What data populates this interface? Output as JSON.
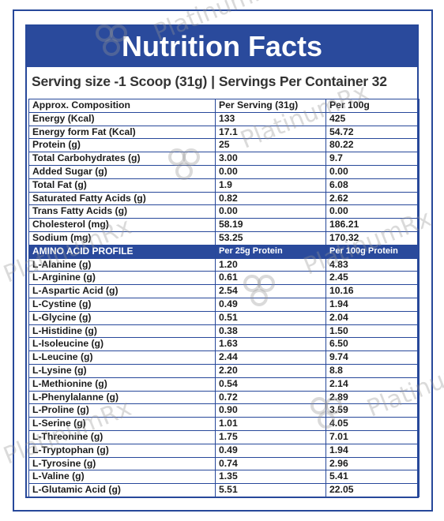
{
  "title": "Nutrition Facts",
  "serving": {
    "size": "Serving size -1 Scoop (31g)",
    "separator": "|",
    "per_container": "Servings Per Container 32"
  },
  "header": {
    "name": "Approx. Composition",
    "per_serving": "Per Serving  (31g)",
    "per_100g": "Per 100g"
  },
  "nutrients": [
    {
      "name": "Energy (Kcal)",
      "per_serving": "133",
      "per_100g": "425"
    },
    {
      "name": "Energy form Fat (Kcal)",
      "per_serving": "17.1",
      "per_100g": "54.72"
    },
    {
      "name": "Protein (g)",
      "per_serving": "25",
      "per_100g": "80.22"
    },
    {
      "name": "Total Carbohydrates (g)",
      "per_serving": "3.00",
      "per_100g": "9.7"
    },
    {
      "name": "Added Sugar (g)",
      "per_serving": "0.00",
      "per_100g": "0.00"
    },
    {
      "name": "Total Fat (g)",
      "per_serving": "1.9",
      "per_100g": "6.08"
    },
    {
      "name": "Saturated Fatty Acids (g)",
      "per_serving": "0.82",
      "per_100g": "2.62"
    },
    {
      "name": "Trans Fatty Acids (g)",
      "per_serving": "0.00",
      "per_100g": "0.00"
    },
    {
      "name": "Cholesterol (mg)",
      "per_serving": "58.19",
      "per_100g": "186.21"
    },
    {
      "name": "Sodium (mg)",
      "per_serving": "53.25",
      "per_100g": "170.32"
    }
  ],
  "amino_header": {
    "name": "AMINO ACID PROFILE",
    "per_25g": "Per 25g Protein",
    "per_100g": "Per 100g Protein"
  },
  "amino_acids": [
    {
      "name": "L-Alanine (g)",
      "per_25g": "1.20",
      "per_100g": "4.83"
    },
    {
      "name": "L-Arginine (g)",
      "per_25g": "0.61",
      "per_100g": "2.45"
    },
    {
      "name": "L-Aspartic Acid (g)",
      "per_25g": "2.54",
      "per_100g": "10.16"
    },
    {
      "name": "L-Cystine (g)",
      "per_25g": "0.49",
      "per_100g": "1.94"
    },
    {
      "name": "L-Glycine (g)",
      "per_25g": "0.51",
      "per_100g": "2.04"
    },
    {
      "name": "L-Histidine (g)",
      "per_25g": "0.38",
      "per_100g": "1.50"
    },
    {
      "name": "L-Isoleucine (g)",
      "per_25g": "1.63",
      "per_100g": "6.50"
    },
    {
      "name": "L-Leucine (g)",
      "per_25g": "2.44",
      "per_100g": "9.74"
    },
    {
      "name": "L-Lysine (g)",
      "per_25g": "2.20",
      "per_100g": "8.8"
    },
    {
      "name": "L-Methionine (g)",
      "per_25g": "0.54",
      "per_100g": "2.14"
    },
    {
      "name": "L-Phenylalanne (g)",
      "per_25g": "0.72",
      "per_100g": "2.89"
    },
    {
      "name": "L-Proline (g)",
      "per_25g": "0.90",
      "per_100g": "3.59"
    },
    {
      "name": "L-Serine (g)",
      "per_25g": "1.01",
      "per_100g": "4.05"
    },
    {
      "name": "L-Threonine (g)",
      "per_25g": "1.75",
      "per_100g": "7.01"
    },
    {
      "name": "L-Tryptophan (g)",
      "per_25g": "0.49",
      "per_100g": "1.94"
    },
    {
      "name": "L-Tyrosine (g)",
      "per_25g": "0.74",
      "per_100g": "2.96"
    },
    {
      "name": "L-Valine (g)",
      "per_25g": "1.35",
      "per_100g": "5.41"
    },
    {
      "name": "L-Glutamic Acid (g)",
      "per_25g": "5.51",
      "per_100g": "22.05"
    }
  ],
  "watermark": "PlatinumRx",
  "colors": {
    "brand_blue": "#2a4a9c",
    "border": "#27489a"
  }
}
